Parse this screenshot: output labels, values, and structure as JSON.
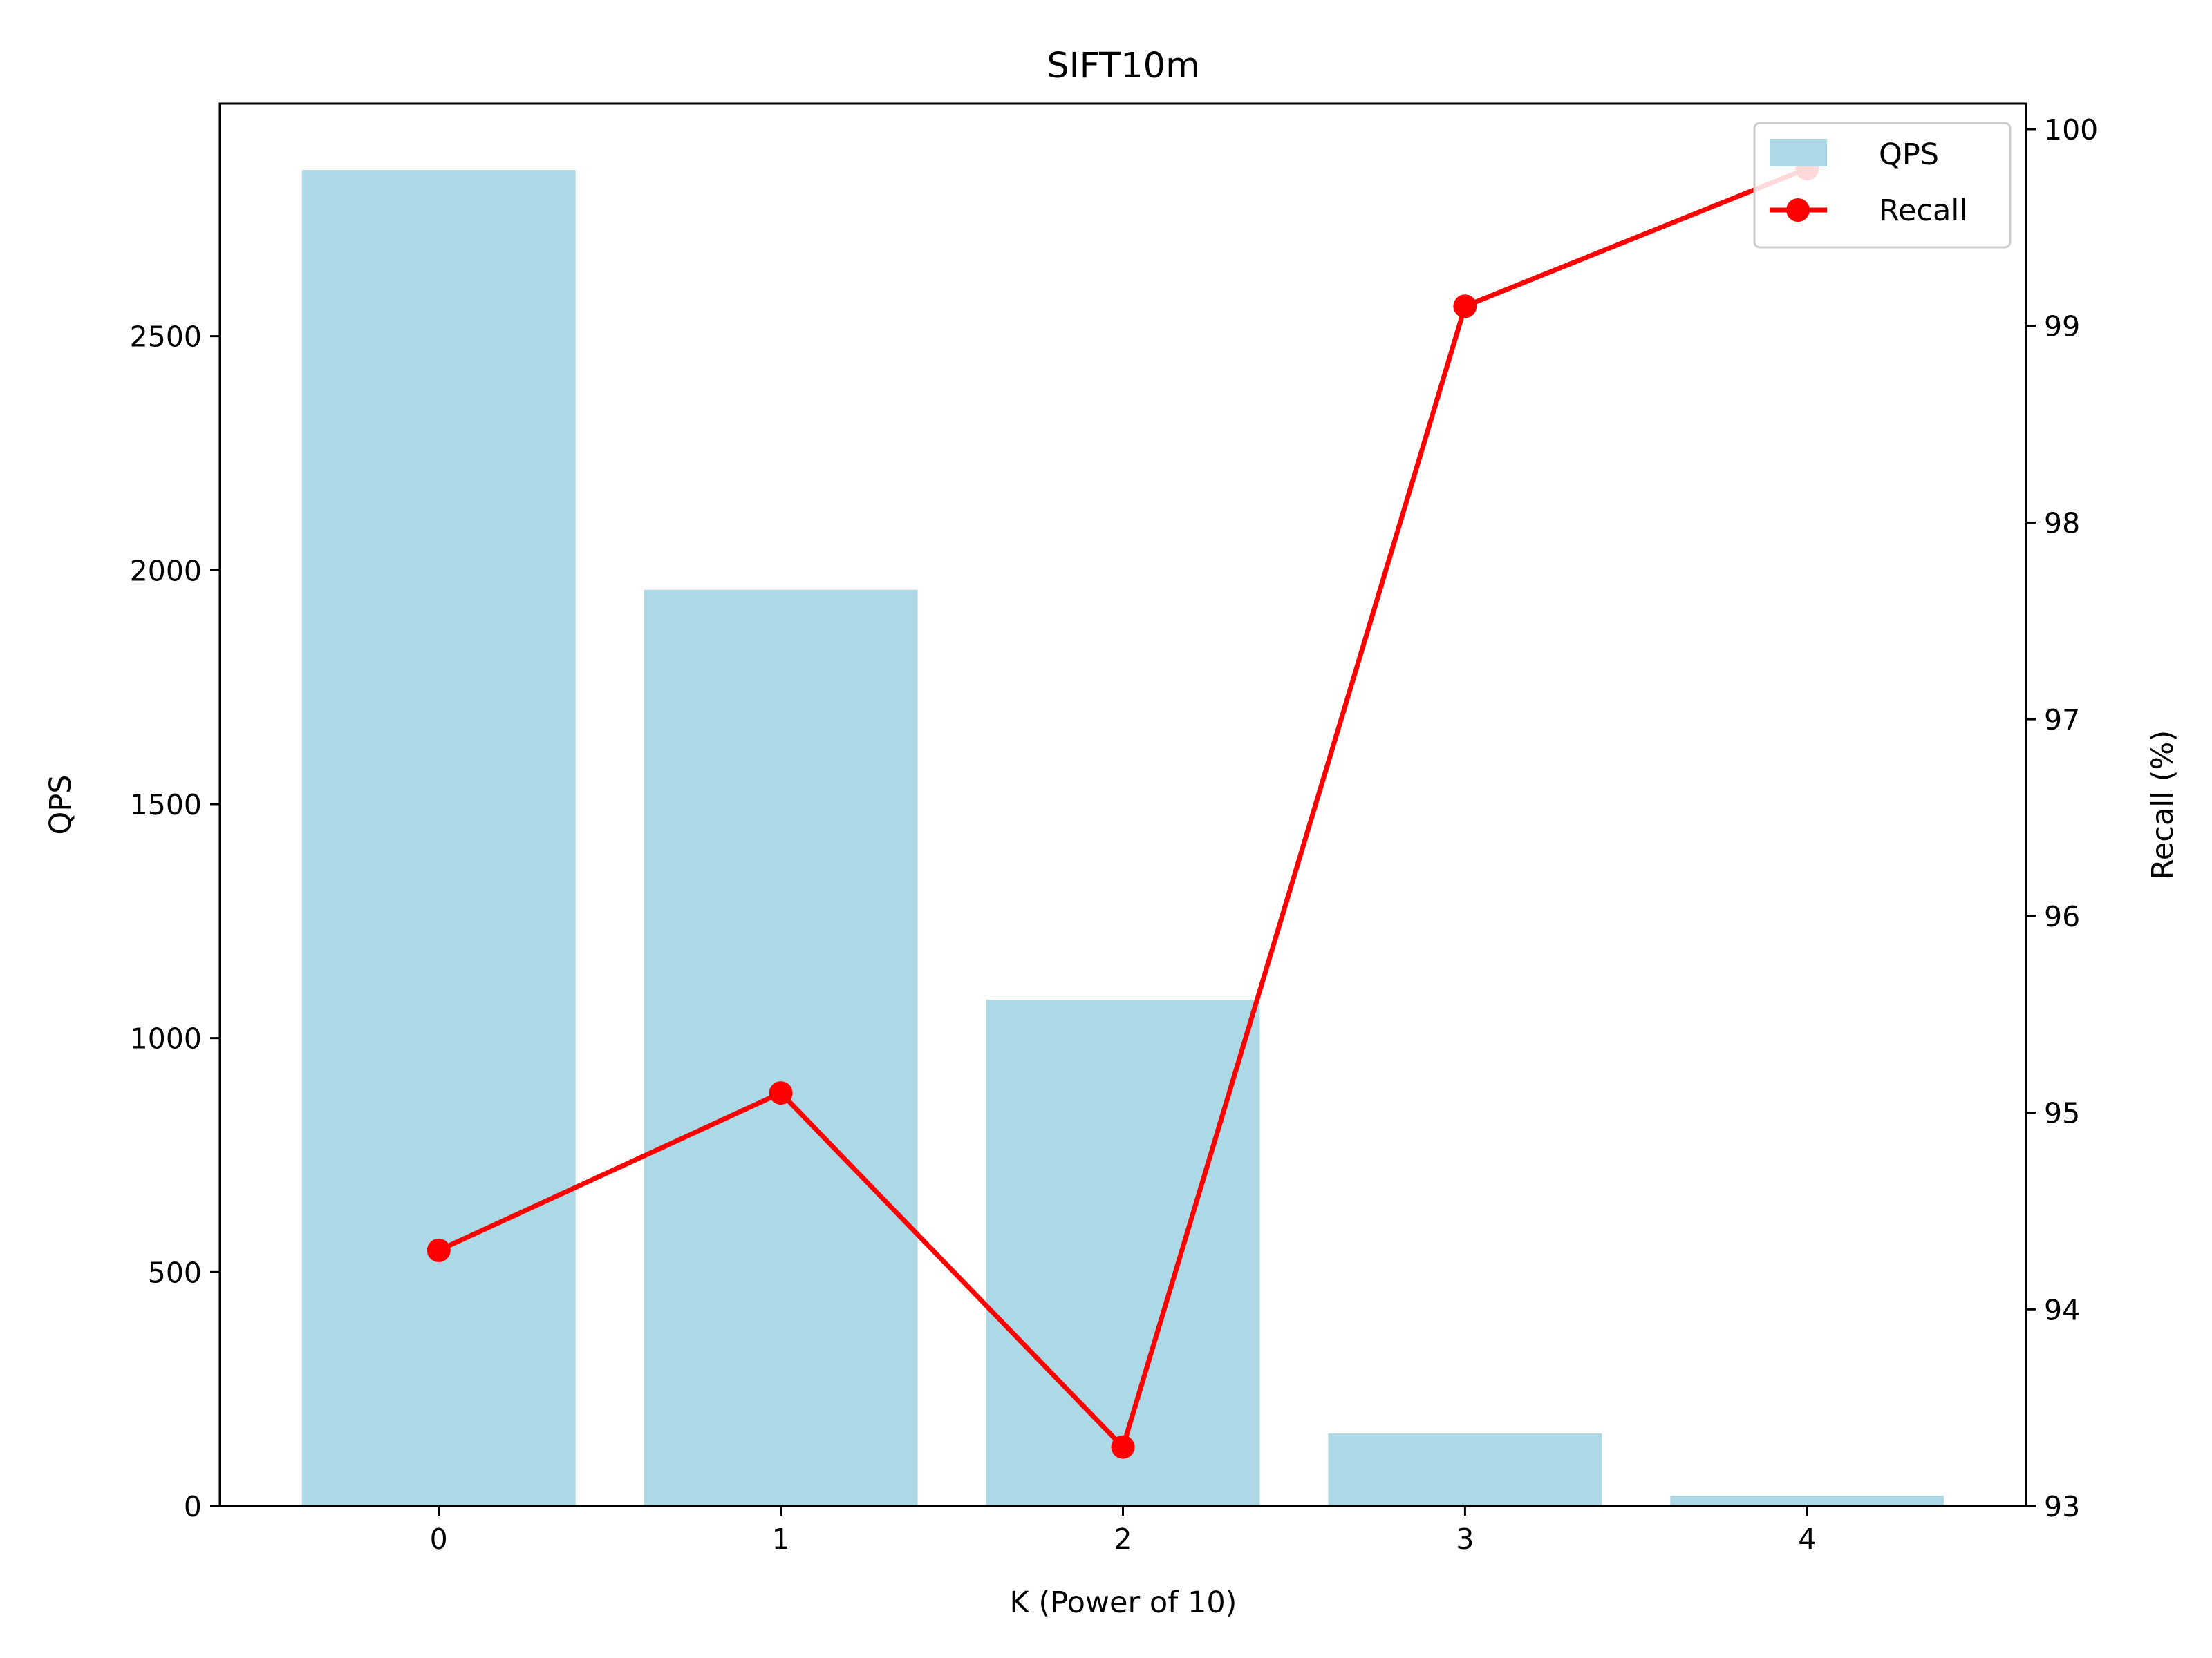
{
  "chart_data": {
    "type": "bar+line",
    "title": "SIFT10m",
    "xlabel": "K (Power of 10)",
    "ylabel_left": "QPS",
    "ylabel_right": "Recall (%)",
    "categories": [
      "0",
      "1",
      "2",
      "3",
      "4"
    ],
    "x": [
      0,
      1,
      2,
      3,
      4
    ],
    "series": [
      {
        "name": "QPS",
        "type": "bar",
        "axis": "left",
        "color": "#add8e6",
        "values": [
          2855,
          1958,
          1082,
          155,
          22
        ]
      },
      {
        "name": "Recall",
        "type": "line",
        "axis": "right",
        "color": "#ff0000",
        "marker": "circle",
        "values": [
          94.3,
          95.1,
          93.3,
          99.1,
          99.8
        ]
      }
    ],
    "xlim": [
      -0.64,
      4.64
    ],
    "ylim_left": [
      0,
      2997
    ],
    "yticks_left": [
      0,
      500,
      1000,
      1500,
      2000,
      2500
    ],
    "ylim_right": [
      93,
      100.13
    ],
    "yticks_right": [
      93,
      94,
      95,
      96,
      97,
      98,
      99,
      100
    ],
    "grid": false,
    "legend_position": "top-right"
  }
}
